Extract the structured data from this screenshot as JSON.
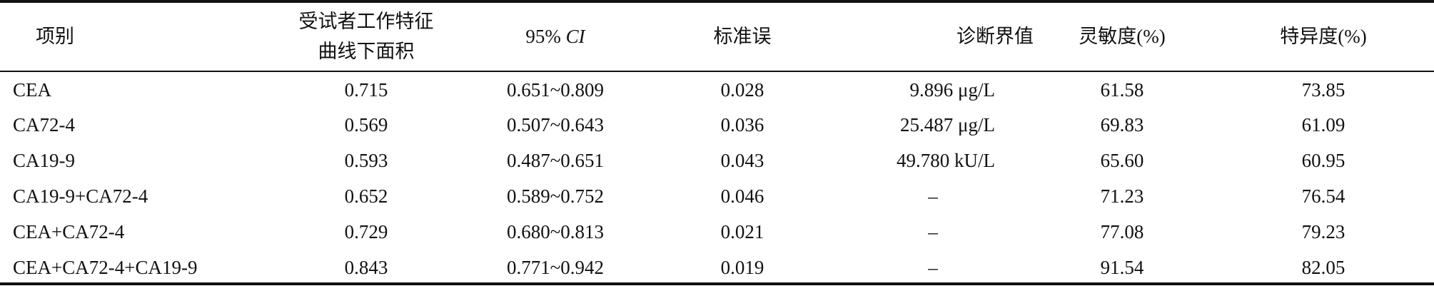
{
  "table": {
    "header": [
      "项别",
      "受试者工作特征\n曲线下面积",
      {
        "text": "95%",
        "italic": "CI"
      },
      "标准误",
      "诊断界值",
      "灵敏度(%)",
      "特异度(%)"
    ],
    "rows": [
      [
        "CEA",
        "0.715",
        "0.651~0.809",
        "0.028",
        "9.896 μg/L",
        "61.58",
        "73.85"
      ],
      [
        "CA72-4",
        "0.569",
        "0.507~0.643",
        "0.036",
        "25.487 μg/L",
        "69.83",
        "61.09"
      ],
      [
        "CA19-9",
        "0.593",
        "0.487~0.651",
        "0.043",
        "49.780 kU/L",
        "65.60",
        "60.95"
      ],
      [
        "CA19-9+CA72-4",
        "0.652",
        "0.589~0.752",
        "0.046",
        "–",
        "71.23",
        "76.54"
      ],
      [
        "CEA+CA72-4",
        "0.729",
        "0.680~0.813",
        "0.021",
        "–",
        "77.08",
        "79.23"
      ],
      [
        "CEA+CA72-4+CA19-9",
        "0.843",
        "0.771~0.942",
        "0.019",
        "–",
        "91.54",
        "82.05"
      ]
    ]
  }
}
